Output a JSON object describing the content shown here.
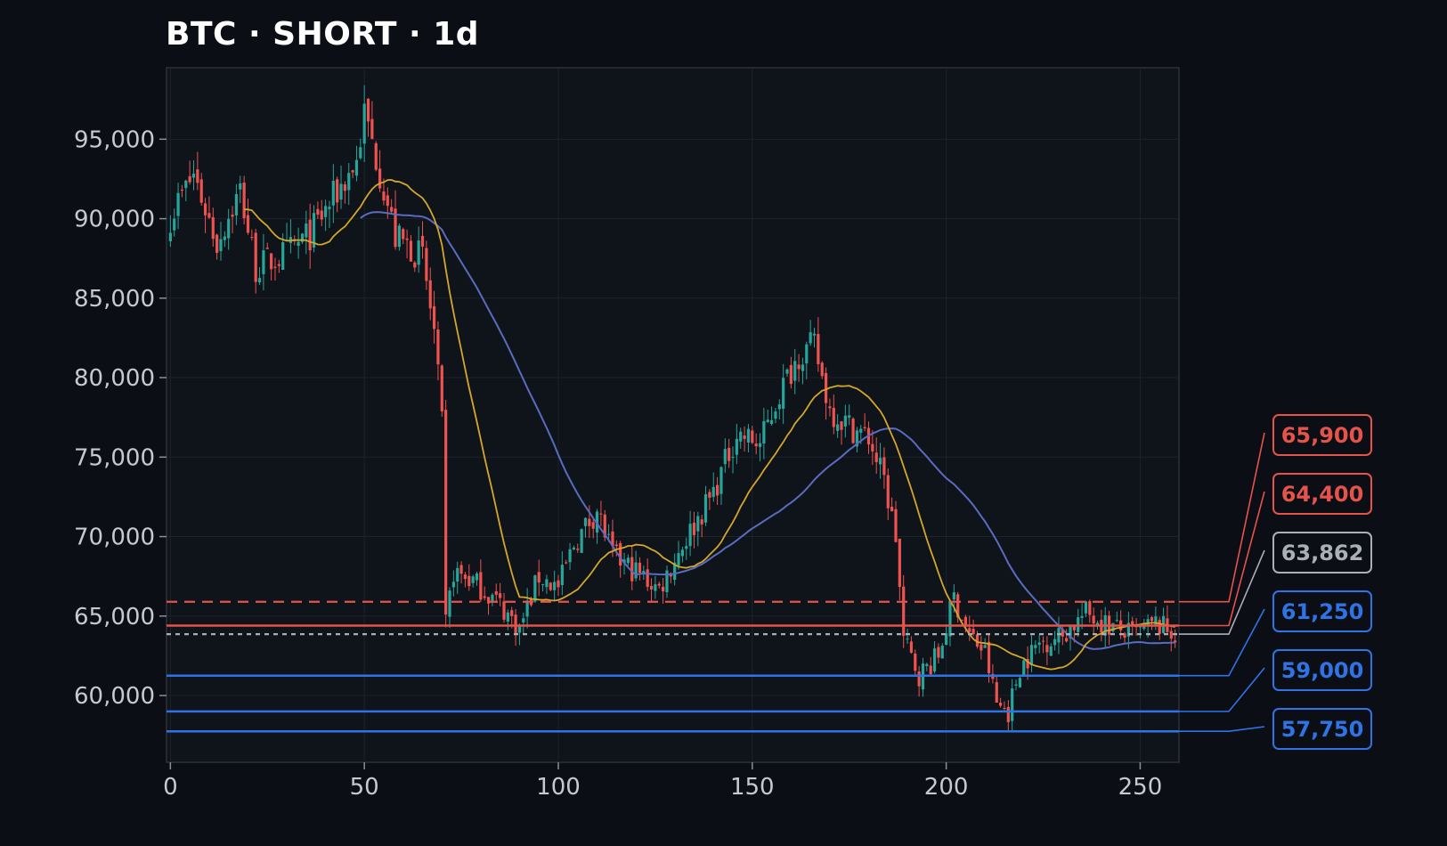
{
  "chart_data": {
    "type": "candlestick",
    "title": "BTC · SHORT · 1d",
    "xlabel": "",
    "ylabel": "",
    "xlim": [
      -1,
      260
    ],
    "ylim": [
      55800,
      99500
    ],
    "x_ticks": [
      {
        "value": 0,
        "label": "0"
      },
      {
        "value": 50,
        "label": "50"
      },
      {
        "value": 100,
        "label": "100"
      },
      {
        "value": 150,
        "label": "150"
      },
      {
        "value": 200,
        "label": "200"
      },
      {
        "value": 250,
        "label": "250"
      }
    ],
    "y_ticks": [
      {
        "value": 60000,
        "label": "60,000"
      },
      {
        "value": 65000,
        "label": "65,000"
      },
      {
        "value": 70000,
        "label": "70,000"
      },
      {
        "value": 75000,
        "label": "75,000"
      },
      {
        "value": 80000,
        "label": "80,000"
      },
      {
        "value": 85000,
        "label": "85,000"
      },
      {
        "value": 90000,
        "label": "90,000"
      },
      {
        "value": 95000,
        "label": "95,000"
      }
    ],
    "grid": true,
    "colors": {
      "up": "#26a69a",
      "down": "#ef5350",
      "ma_fast": "#d4a72c",
      "ma_slow": "#5b6bbf",
      "red_level": "#e5534b",
      "blue_level": "#2f74e6",
      "price": "#aab0b8"
    },
    "close_path": [
      [
        0,
        90200
      ],
      [
        6,
        92800
      ],
      [
        12,
        88500
      ],
      [
        18,
        91800
      ],
      [
        22,
        86900
      ],
      [
        30,
        87800
      ],
      [
        36,
        89000
      ],
      [
        42,
        91300
      ],
      [
        48,
        93600
      ],
      [
        50,
        96600
      ],
      [
        54,
        93000
      ],
      [
        58,
        88800
      ],
      [
        62,
        88200
      ],
      [
        65,
        87500
      ],
      [
        68,
        82800
      ],
      [
        70,
        77000
      ],
      [
        71,
        64500
      ],
      [
        73,
        67800
      ],
      [
        78,
        67200
      ],
      [
        84,
        66000
      ],
      [
        90,
        64200
      ],
      [
        95,
        67500
      ],
      [
        100,
        66800
      ],
      [
        104,
        69500
      ],
      [
        110,
        71700
      ],
      [
        114,
        68800
      ],
      [
        120,
        67800
      ],
      [
        126,
        66700
      ],
      [
        132,
        69500
      ],
      [
        140,
        72800
      ],
      [
        146,
        76500
      ],
      [
        152,
        75800
      ],
      [
        157,
        79000
      ],
      [
        162,
        81500
      ],
      [
        166,
        82000
      ],
      [
        170,
        78000
      ],
      [
        176,
        76800
      ],
      [
        180,
        76200
      ],
      [
        184,
        73500
      ],
      [
        187,
        70000
      ],
      [
        189,
        63500
      ],
      [
        193,
        61300
      ],
      [
        198,
        62500
      ],
      [
        202,
        66200
      ],
      [
        206,
        63800
      ],
      [
        210,
        62700
      ],
      [
        213,
        59500
      ],
      [
        216,
        59000
      ],
      [
        219,
        61800
      ],
      [
        224,
        63300
      ],
      [
        230,
        63800
      ],
      [
        236,
        65200
      ],
      [
        242,
        64400
      ],
      [
        248,
        63800
      ],
      [
        254,
        64500
      ],
      [
        259,
        63862
      ]
    ],
    "levels": [
      {
        "value": 65900,
        "label": "65,900",
        "kind": "red",
        "style": "dashed"
      },
      {
        "value": 64400,
        "label": "64,400",
        "kind": "red",
        "style": "solid"
      },
      {
        "value": 63862,
        "label": "63,862",
        "kind": "price",
        "style": "dotted"
      },
      {
        "value": 61250,
        "label": "61,250",
        "kind": "blue",
        "style": "solid"
      },
      {
        "value": 59000,
        "label": "59,000",
        "kind": "blue",
        "style": "solid"
      },
      {
        "value": 57750,
        "label": "57,750",
        "kind": "blue",
        "style": "solid"
      }
    ]
  }
}
